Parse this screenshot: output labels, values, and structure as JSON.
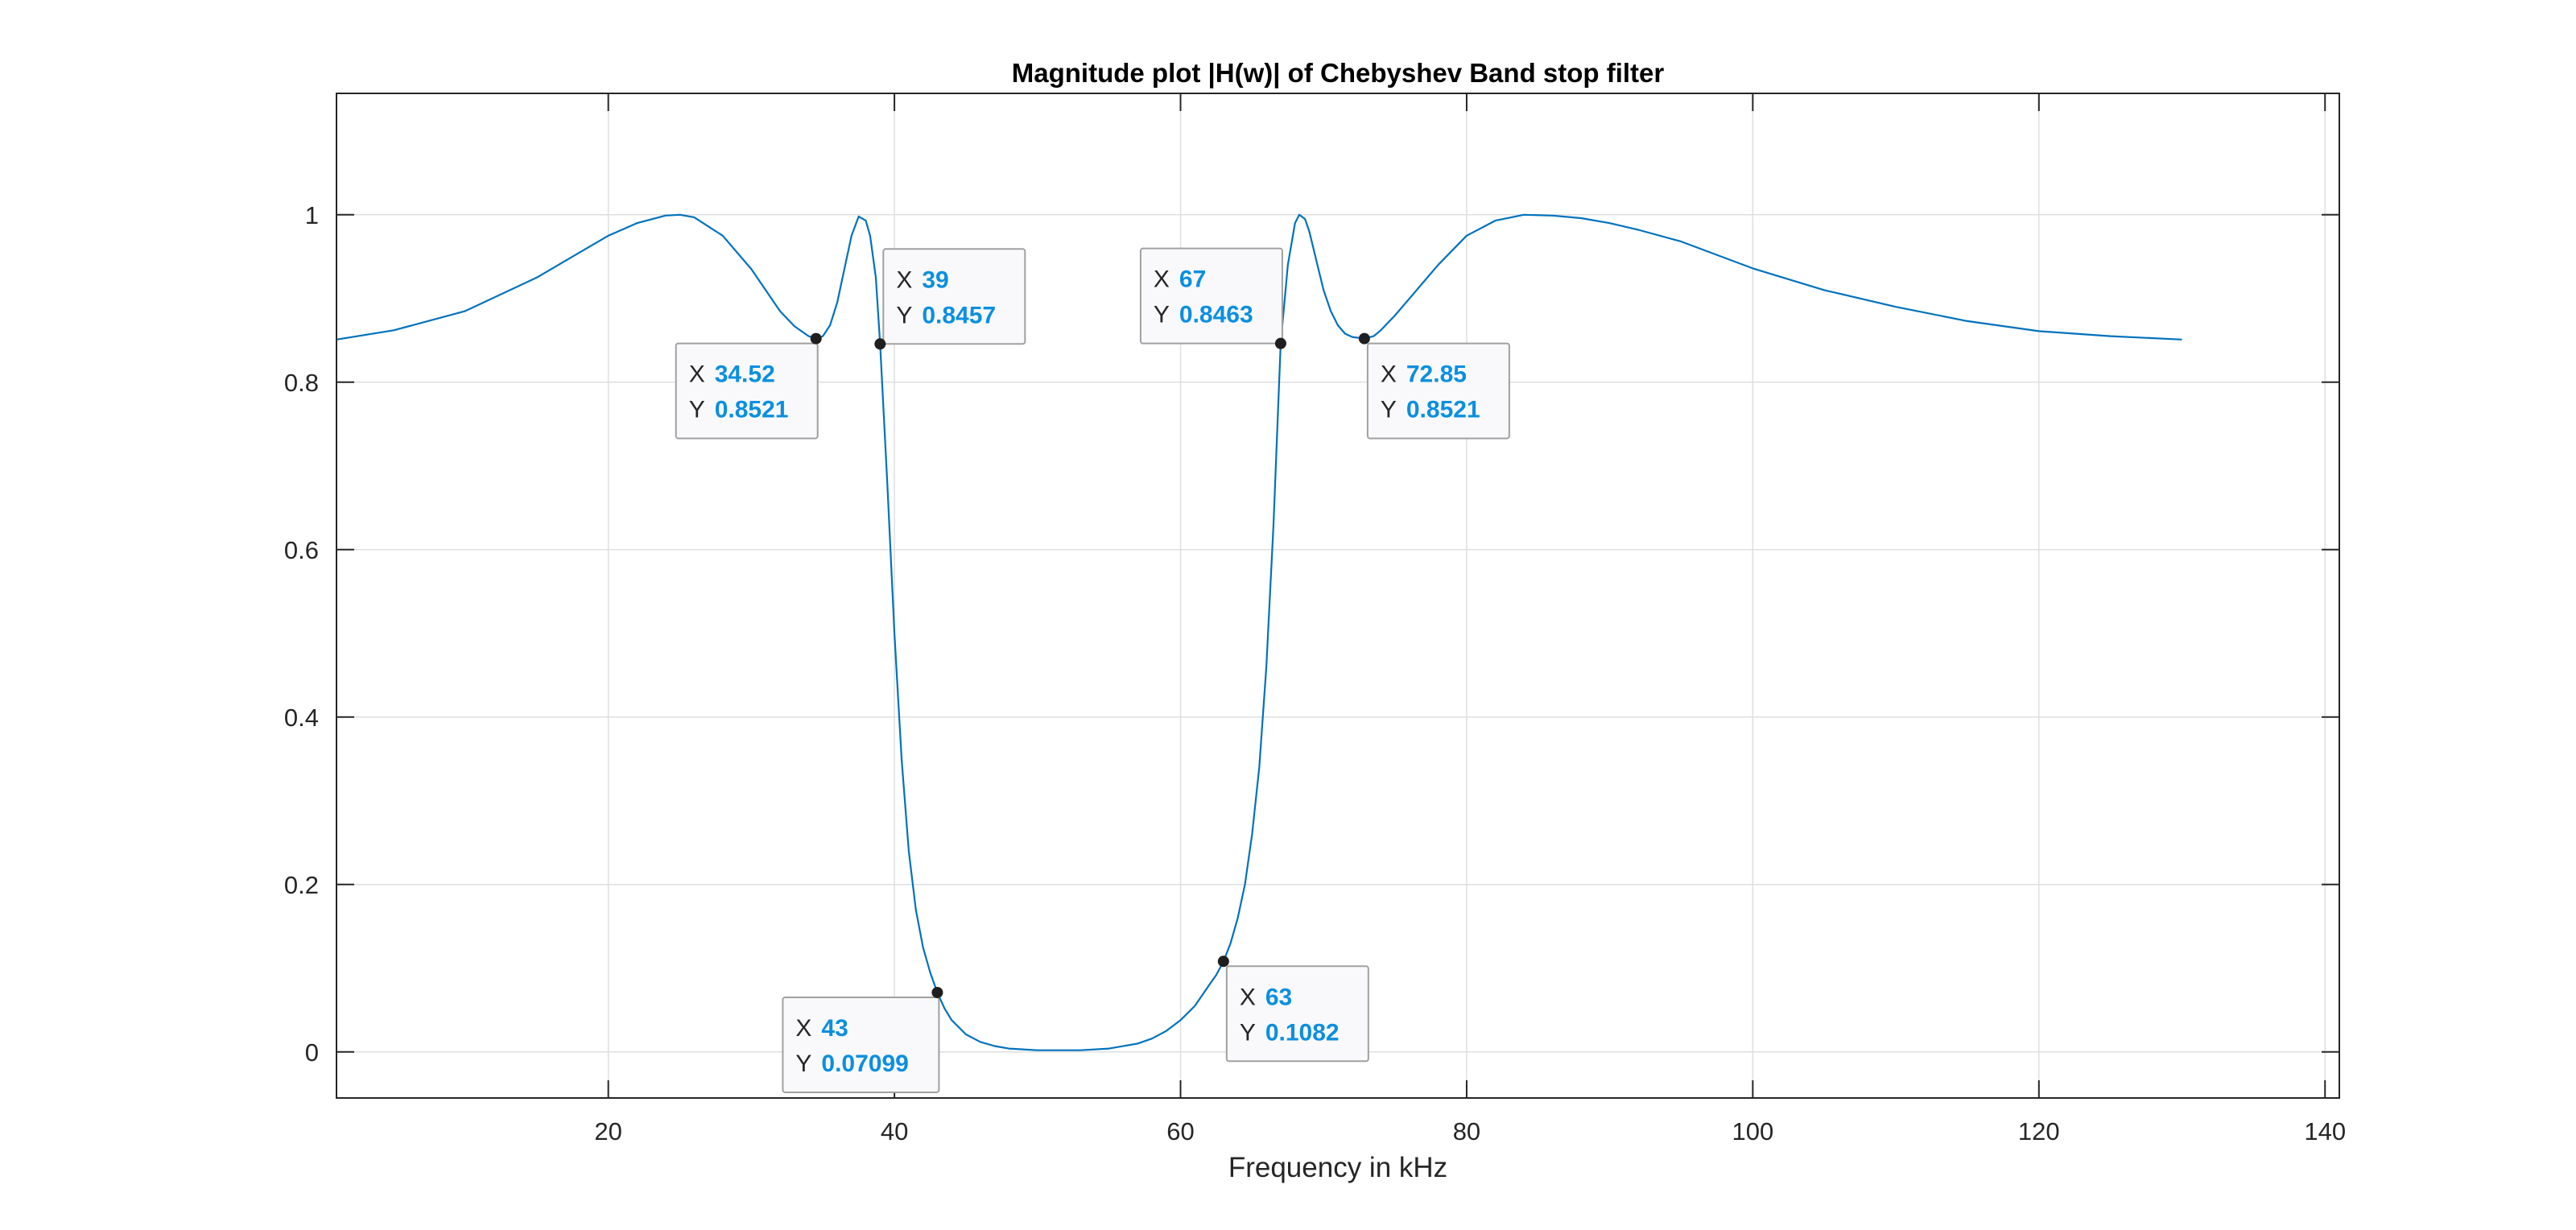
{
  "colors": {
    "background": "#ffffff",
    "axes_background": "#ffffff",
    "axis_line": "#262626",
    "grid": "#dfdfdf",
    "series": "#0072bd",
    "marker": "#1f1f1f",
    "tip_label": "#262626",
    "tip_value": "#0b8fe0",
    "tip_border": "#a0a0a0",
    "tip_background": "#f9f9fc"
  },
  "chart_data": {
    "type": "line",
    "title": "Magnitude plot |H(w)| of Chebyshev Band stop filter",
    "xlabel": "Frequency in kHz",
    "ylabel": "",
    "xlim": [
      1,
      141
    ],
    "ylim": [
      -0.055,
      1.145
    ],
    "xticks": [
      20,
      40,
      60,
      80,
      100,
      120,
      140
    ],
    "xtick_labels": [
      "20",
      "40",
      "60",
      "80",
      "100",
      "120",
      "140"
    ],
    "yticks": [
      0,
      0.2,
      0.4,
      0.6,
      0.8,
      1
    ],
    "ytick_labels": [
      "0",
      "0.2",
      "0.4",
      "0.6",
      "0.8",
      "1"
    ],
    "grid": true,
    "legend": "none",
    "series": [
      {
        "x": [
          1,
          5,
          10,
          15,
          18,
          20,
          22,
          24,
          25,
          26,
          28,
          30,
          32,
          33,
          34,
          34.52,
          35,
          35.5,
          36,
          36.5,
          37,
          37.5,
          38,
          38.3,
          38.7,
          39,
          39.5,
          40,
          40.5,
          41,
          41.5,
          42,
          42.5,
          43,
          43.5,
          44,
          45,
          46,
          47,
          48,
          50,
          53,
          55,
          57,
          58,
          59,
          60,
          61,
          62,
          62.5,
          63,
          63.5,
          64,
          64.5,
          65,
          65.5,
          66,
          66.5,
          67,
          67.5,
          68,
          68.3,
          68.7,
          69,
          69.5,
          70,
          70.5,
          71,
          71.5,
          72,
          72.85,
          73.5,
          74,
          75,
          76,
          78,
          80,
          82,
          84,
          86,
          88,
          90,
          92,
          95,
          100,
          105,
          110,
          115,
          120,
          125,
          130
        ],
        "values": [
          0.851,
          0.862,
          0.885,
          0.925,
          0.955,
          0.975,
          0.99,
          0.999,
          1.0,
          0.997,
          0.975,
          0.935,
          0.885,
          0.867,
          0.855,
          0.852,
          0.855,
          0.868,
          0.895,
          0.935,
          0.975,
          0.998,
          0.993,
          0.975,
          0.925,
          0.846,
          0.68,
          0.5,
          0.35,
          0.24,
          0.17,
          0.125,
          0.095,
          0.071,
          0.052,
          0.038,
          0.021,
          0.012,
          0.007,
          0.004,
          0.002,
          0.002,
          0.004,
          0.01,
          0.016,
          0.025,
          0.038,
          0.055,
          0.08,
          0.092,
          0.108,
          0.13,
          0.16,
          0.2,
          0.26,
          0.34,
          0.46,
          0.63,
          0.846,
          0.94,
          0.99,
          1.0,
          0.995,
          0.98,
          0.945,
          0.91,
          0.885,
          0.868,
          0.858,
          0.854,
          0.852,
          0.855,
          0.862,
          0.88,
          0.9,
          0.94,
          0.975,
          0.993,
          1.0,
          0.999,
          0.996,
          0.99,
          0.982,
          0.968,
          0.936,
          0.91,
          0.89,
          0.873,
          0.861,
          0.855,
          0.851
        ]
      }
    ],
    "datatips": [
      {
        "x": 34.52,
        "y": 0.8521,
        "x_text": "34.52",
        "y_text": "0.8521",
        "placement": "below-left"
      },
      {
        "x": 39,
        "y": 0.8457,
        "x_text": "39",
        "y_text": "0.8457",
        "placement": "above-right"
      },
      {
        "x": 67,
        "y": 0.8463,
        "x_text": "67",
        "y_text": "0.8463",
        "placement": "above-left"
      },
      {
        "x": 72.85,
        "y": 0.8521,
        "x_text": "72.85",
        "y_text": "0.8521",
        "placement": "below-right"
      },
      {
        "x": 43,
        "y": 0.07099,
        "x_text": "43",
        "y_text": "0.07099",
        "placement": "below-left"
      },
      {
        "x": 63,
        "y": 0.1082,
        "x_text": "63",
        "y_text": "0.1082",
        "placement": "below-right"
      }
    ],
    "datatip_labels": {
      "x": "X",
      "y": "Y"
    }
  }
}
